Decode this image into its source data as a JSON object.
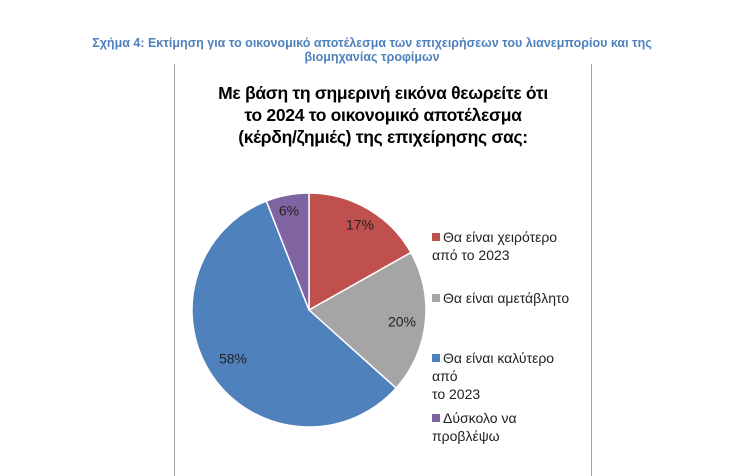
{
  "caption": {
    "line1": "Σχήμα 4: Εκτίμηση για το οικονομικό αποτέλεσμα των επιχειρήσεων του λιανεμπορίου και της",
    "line2": "βιομηχανίας τροφίμων"
  },
  "chart_data": {
    "type": "pie",
    "title_lines": [
      "Με βάση τη σημερινή εικόνα θεωρείτε ότι",
      "το 2024 το οικονομικό αποτέλεσμα",
      "(κέρδη/ζημιές) της επιχείρησης σας:"
    ],
    "legend_position": "right",
    "slices": [
      {
        "label": "Θα είναι χειρότερο από το 2023",
        "label_lines": [
          "Θα είναι χειρότερο",
          "από το 2023"
        ],
        "value": 17,
        "data_label": "17%",
        "color": "#c0504d"
      },
      {
        "label": "Θα είναι αμετάβλητο",
        "label_lines": [
          "Θα είναι αμετάβλητο"
        ],
        "value": 20,
        "data_label": "20%",
        "color": "#a5a5a5"
      },
      {
        "label": "Θα είναι καλύτερο από το 2023",
        "label_lines": [
          "Θα είναι καλύτερο από",
          "το 2023"
        ],
        "value": 58,
        "data_label": "58%",
        "color": "#4f81bd"
      },
      {
        "label": "Δύσκολο να προβλέψω",
        "label_lines": [
          "Δύσκολο να",
          "προβλέψω"
        ],
        "value": 6,
        "data_label": "6%",
        "color": "#8064a2"
      }
    ]
  }
}
